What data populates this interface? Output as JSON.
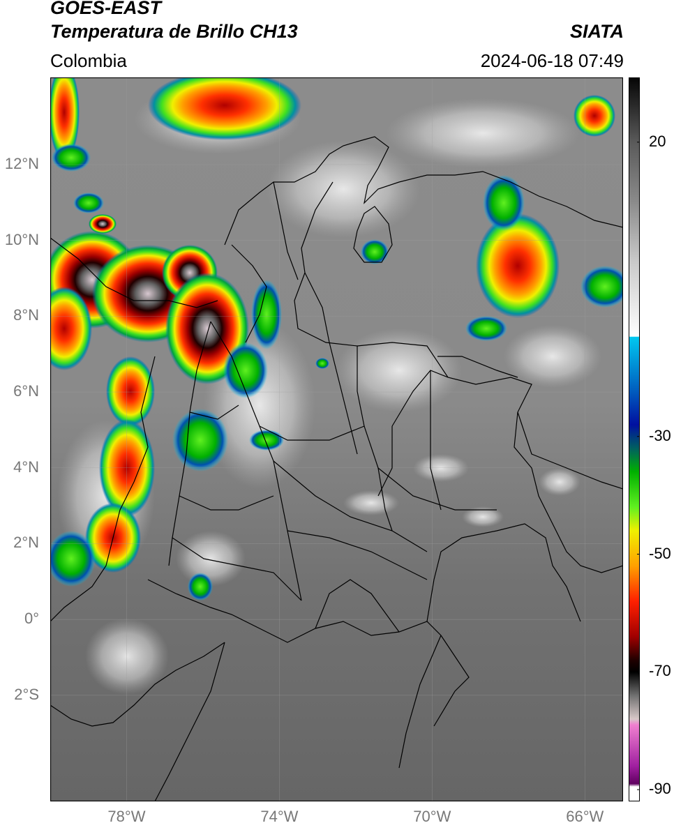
{
  "header": {
    "satellite": "GOES-EAST",
    "product": "Temperatura de Brillo CH13",
    "agency": "SIATA",
    "region": "Colombia",
    "timestamp": "2024-06-18 07:49"
  },
  "map": {
    "lat_range": [
      -4.8,
      14.3
    ],
    "lon_range": [
      -80.0,
      -65.0
    ],
    "lat_ticks": [
      "12°N",
      "10°N",
      "8°N",
      "6°N",
      "4°N",
      "2°N",
      "0°",
      "2°S"
    ],
    "lat_tick_values": [
      12,
      10,
      8,
      6,
      4,
      2,
      0,
      -2
    ],
    "lon_ticks": [
      "78°W",
      "74°W",
      "70°W",
      "66°W"
    ],
    "lon_tick_values": [
      -78,
      -74,
      -70,
      -66
    ],
    "gridlines": true,
    "colors": {
      "land_gray": "#6e6e6e",
      "cloud_white": "#e8e8e8",
      "border": "#000000",
      "grid": "#a0a0a0"
    }
  },
  "colorbar": {
    "range": [
      -92,
      31
    ],
    "tick_labels": [
      "20",
      "-30",
      "-50",
      "-70",
      "-90"
    ],
    "tick_values": [
      20,
      -30,
      -50,
      -70,
      -90
    ],
    "stops": [
      {
        "t": 31,
        "c": "#050505"
      },
      {
        "t": 20,
        "c": "#5a5a5a"
      },
      {
        "t": 10,
        "c": "#8a8a8a"
      },
      {
        "t": 0,
        "c": "#c8c8c8"
      },
      {
        "t": -13,
        "c": "#ffffff"
      },
      {
        "t": -13.1,
        "c": "#00c8f0"
      },
      {
        "t": -22,
        "c": "#0060c0"
      },
      {
        "t": -28,
        "c": "#0010a0"
      },
      {
        "t": -32,
        "c": "#006060"
      },
      {
        "t": -36,
        "c": "#00b000"
      },
      {
        "t": -42,
        "c": "#60f020"
      },
      {
        "t": -46,
        "c": "#f0f000"
      },
      {
        "t": -52,
        "c": "#ffa000"
      },
      {
        "t": -58,
        "c": "#ff2000"
      },
      {
        "t": -64,
        "c": "#a00000"
      },
      {
        "t": -68,
        "c": "#200000"
      },
      {
        "t": -70,
        "c": "#000000"
      },
      {
        "t": -74,
        "c": "#707070"
      },
      {
        "t": -78,
        "c": "#d8c8c8"
      },
      {
        "t": -79,
        "c": "#f080d0"
      },
      {
        "t": -86,
        "c": "#a020a0"
      },
      {
        "t": -89,
        "c": "#600060"
      },
      {
        "t": -89.5,
        "c": "#ffffff"
      },
      {
        "t": -92,
        "c": "#ffffff"
      }
    ]
  }
}
